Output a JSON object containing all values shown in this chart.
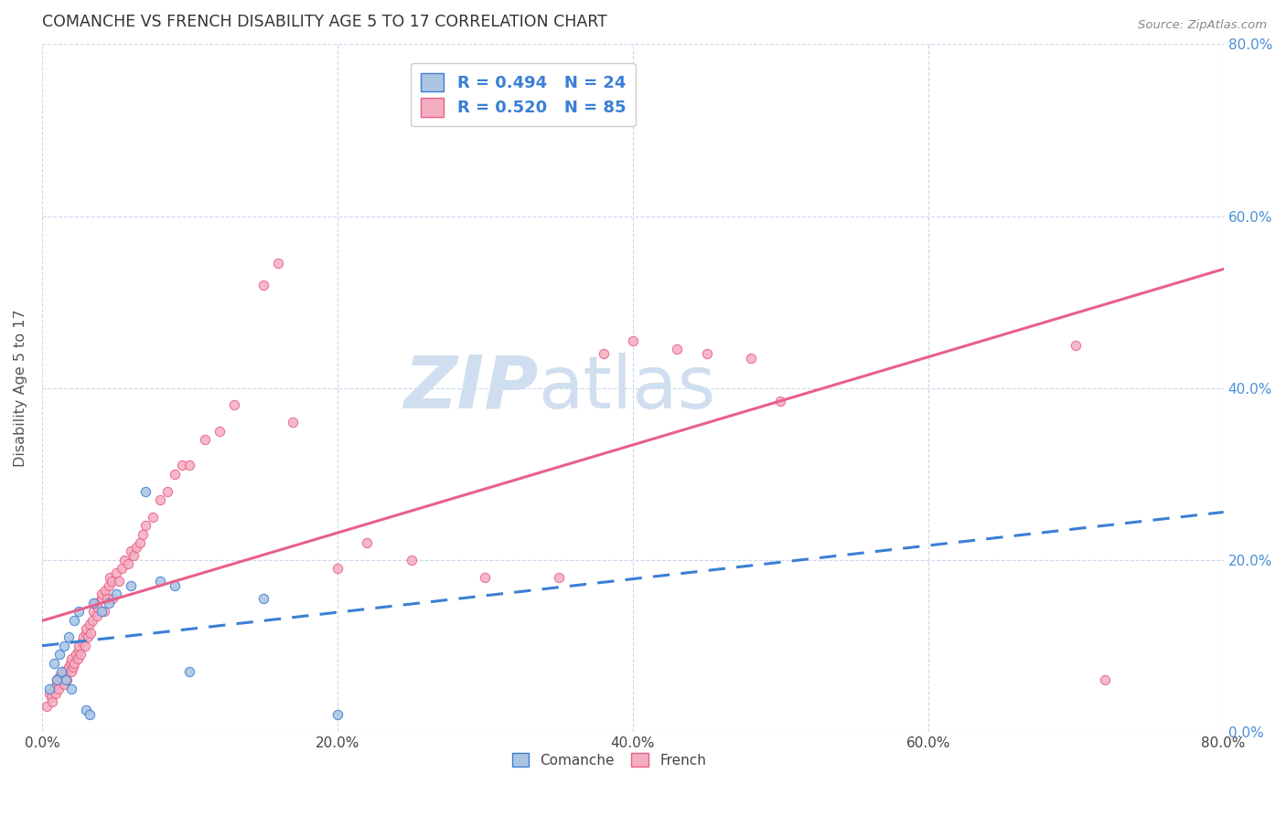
{
  "title": "COMANCHE VS FRENCH DISABILITY AGE 5 TO 17 CORRELATION CHART",
  "source": "Source: ZipAtlas.com",
  "ylabel": "Disability Age 5 to 17",
  "xlim": [
    0.0,
    0.8
  ],
  "ylim": [
    0.0,
    0.8
  ],
  "xticks": [
    0.0,
    0.2,
    0.4,
    0.6,
    0.8
  ],
  "yticks": [
    0.0,
    0.2,
    0.4,
    0.6,
    0.8
  ],
  "xticklabels": [
    "0.0%",
    "20.0%",
    "40.0%",
    "60.0%",
    "80.0%"
  ],
  "right_yticklabels": [
    "80.0%",
    "60.0%",
    "40.0%",
    "20.0%",
    "0.0%"
  ],
  "comanche_R": 0.494,
  "comanche_N": 24,
  "french_R": 0.52,
  "french_N": 85,
  "comanche_color": "#aac4e2",
  "french_color": "#f5adc0",
  "comanche_line_color": "#3a7fd5",
  "french_line_color": "#e8608a",
  "background_color": "#ffffff",
  "grid_color": "#ccd8ee",
  "title_color": "#333333",
  "axis_label_color": "#555555",
  "tick_label_color_right": "#4a90d9",
  "tick_label_color_bottom": "#444444",
  "watermark_zip": "ZIP",
  "watermark_atlas": "atlas",
  "watermark_color": "#d0dff0",
  "legend_label1": "R = 0.494   N = 24",
  "legend_label2": "R = 0.520   N = 85",
  "comanche_x": [
    0.005,
    0.008,
    0.01,
    0.012,
    0.013,
    0.015,
    0.016,
    0.018,
    0.02,
    0.022,
    0.025,
    0.03,
    0.032,
    0.035,
    0.04,
    0.045,
    0.05,
    0.06,
    0.07,
    0.08,
    0.09,
    0.1,
    0.15,
    0.2
  ],
  "comanche_y": [
    0.05,
    0.08,
    0.06,
    0.09,
    0.07,
    0.1,
    0.06,
    0.11,
    0.05,
    0.13,
    0.14,
    0.025,
    0.02,
    0.15,
    0.14,
    0.15,
    0.16,
    0.17,
    0.28,
    0.175,
    0.17,
    0.07,
    0.155,
    0.02
  ],
  "french_x": [
    0.003,
    0.005,
    0.006,
    0.007,
    0.008,
    0.009,
    0.01,
    0.01,
    0.011,
    0.012,
    0.013,
    0.014,
    0.015,
    0.015,
    0.016,
    0.017,
    0.018,
    0.019,
    0.02,
    0.02,
    0.021,
    0.022,
    0.023,
    0.024,
    0.025,
    0.025,
    0.026,
    0.027,
    0.028,
    0.029,
    0.03,
    0.03,
    0.031,
    0.032,
    0.033,
    0.034,
    0.035,
    0.036,
    0.037,
    0.038,
    0.04,
    0.04,
    0.042,
    0.043,
    0.044,
    0.045,
    0.046,
    0.047,
    0.048,
    0.05,
    0.052,
    0.054,
    0.056,
    0.058,
    0.06,
    0.062,
    0.064,
    0.066,
    0.068,
    0.07,
    0.075,
    0.08,
    0.085,
    0.09,
    0.095,
    0.1,
    0.11,
    0.12,
    0.13,
    0.15,
    0.16,
    0.17,
    0.2,
    0.22,
    0.25,
    0.3,
    0.35,
    0.38,
    0.4,
    0.43,
    0.45,
    0.48,
    0.5,
    0.7,
    0.72
  ],
  "french_y": [
    0.03,
    0.045,
    0.04,
    0.035,
    0.05,
    0.045,
    0.055,
    0.06,
    0.05,
    0.065,
    0.06,
    0.07,
    0.065,
    0.055,
    0.07,
    0.06,
    0.075,
    0.08,
    0.07,
    0.085,
    0.075,
    0.08,
    0.09,
    0.085,
    0.095,
    0.1,
    0.09,
    0.105,
    0.11,
    0.1,
    0.115,
    0.12,
    0.11,
    0.125,
    0.115,
    0.13,
    0.14,
    0.15,
    0.135,
    0.145,
    0.155,
    0.16,
    0.14,
    0.165,
    0.155,
    0.17,
    0.18,
    0.175,
    0.155,
    0.185,
    0.175,
    0.19,
    0.2,
    0.195,
    0.21,
    0.205,
    0.215,
    0.22,
    0.23,
    0.24,
    0.25,
    0.27,
    0.28,
    0.3,
    0.31,
    0.31,
    0.34,
    0.35,
    0.38,
    0.52,
    0.545,
    0.36,
    0.19,
    0.22,
    0.2,
    0.18,
    0.18,
    0.44,
    0.455,
    0.445,
    0.44,
    0.435,
    0.385,
    0.45,
    0.06
  ]
}
